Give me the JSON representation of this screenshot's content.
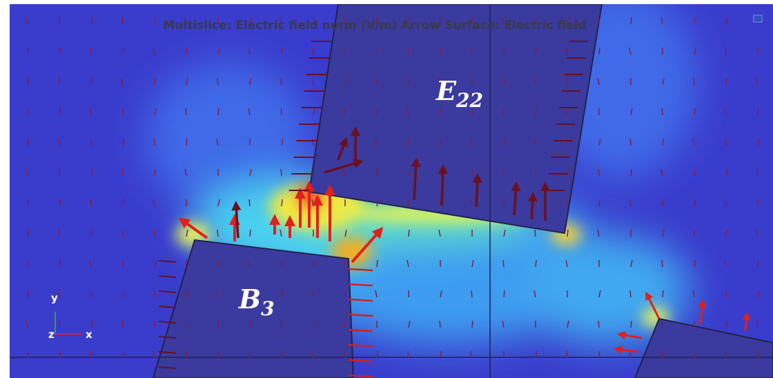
{
  "header": {
    "title": "Multislice: Electric field norm (V/m)  Arrow Surface: Electric field"
  },
  "labels": [
    {
      "base": "E",
      "sub": "22"
    },
    {
      "base": "B",
      "sub": "3"
    }
  ],
  "axes": {
    "y": "y",
    "z": "z",
    "x": "x"
  }
}
